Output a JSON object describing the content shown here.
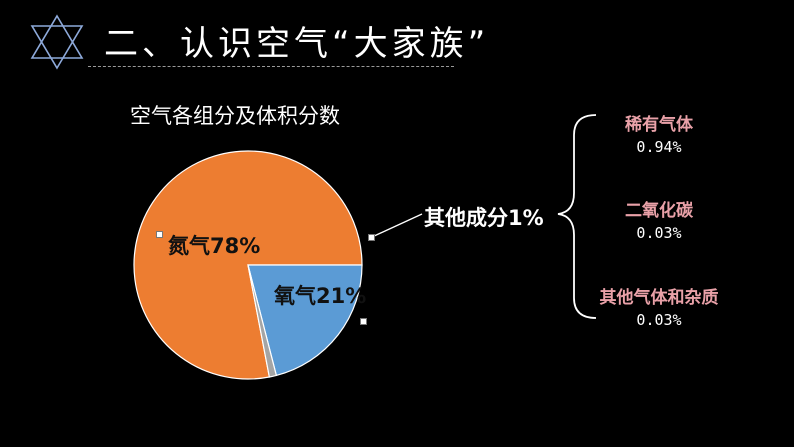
{
  "slide": {
    "title": "二、认识空气“大家族”",
    "logo_icon": "star-of-david-icon"
  },
  "chart_data": {
    "type": "pie",
    "title": "空气各组分及体积分数",
    "slices": [
      {
        "label": "氮气78%",
        "value": 78,
        "color": "#ed7d31"
      },
      {
        "label": "氧气21%",
        "value": 21,
        "color": "#5b9bd5"
      },
      {
        "label": "其他成分1%",
        "value": 1,
        "color": "#a5a5a5"
      }
    ],
    "other_breakdown": [
      {
        "name": "稀有气体",
        "value": "0.94%"
      },
      {
        "name": "二氧化碳",
        "value": "0.03%"
      },
      {
        "name": "其他气体和杂质",
        "value": "0.03%"
      }
    ]
  }
}
